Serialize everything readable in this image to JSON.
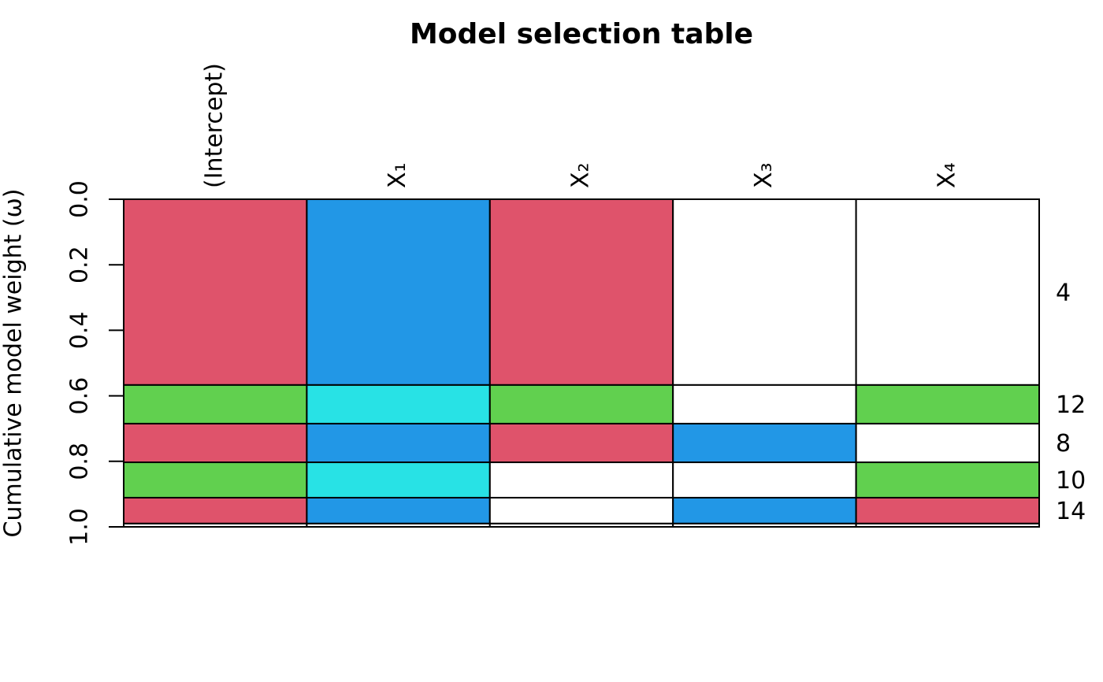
{
  "chart_data": {
    "type": "model-table",
    "title": "Model selection table",
    "y_label": "Cumulative model weight (ω)",
    "columns": [
      "(Intercept)",
      "X₁",
      "X₂",
      "X₃",
      "X₄"
    ],
    "categories": [
      "4",
      "12",
      "8",
      "10",
      "14",
      null
    ],
    "values": [
      0.567,
      0.118,
      0.118,
      0.108,
      0.079,
      0.01
    ],
    "cell_colors": [
      [
        "#df536b",
        "#2297e6",
        "#df536b",
        "#ffffff",
        "#ffffff"
      ],
      [
        "#61d04f",
        "#28e2e5",
        "#61d04f",
        "#ffffff",
        "#61d04f"
      ],
      [
        "#df536b",
        "#2297e6",
        "#df536b",
        "#2297e6",
        "#ffffff"
      ],
      [
        "#61d04f",
        "#28e2e5",
        "#ffffff",
        "#ffffff",
        "#61d04f"
      ],
      [
        "#df536b",
        "#2297e6",
        "#ffffff",
        "#2297e6",
        "#df536b"
      ],
      [
        "#ffffff",
        "#ffffff",
        "#ffffff",
        "#ffffff",
        "#ffffff"
      ]
    ],
    "ylim": [
      0,
      1
    ],
    "yticks": [
      {
        "value": 0,
        "label": "0.0"
      },
      {
        "value": 0.2,
        "label": "0.2"
      },
      {
        "value": 0.4,
        "label": "0.4"
      },
      {
        "value": 0.6,
        "label": "0.6"
      },
      {
        "value": 0.8,
        "label": "0.8"
      },
      {
        "value": 1,
        "label": "1.0"
      }
    ]
  }
}
